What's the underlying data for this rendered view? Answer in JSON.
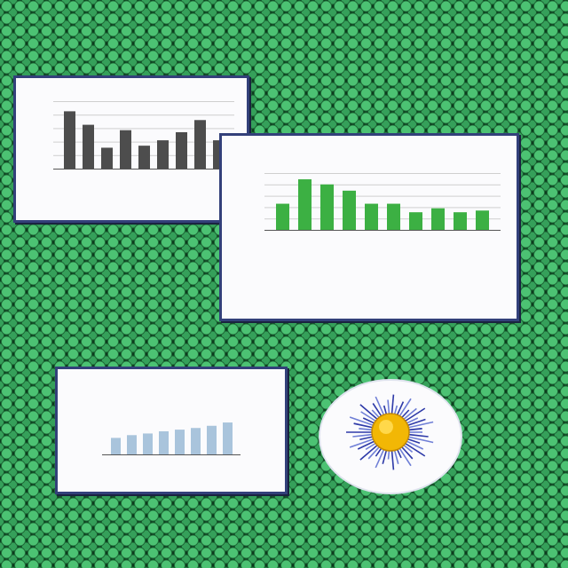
{
  "chart_data": [
    {
      "type": "bar",
      "categories": [
        null,
        null,
        null,
        null,
        null,
        null,
        null,
        null,
        null
      ],
      "values": [
        85,
        65,
        31,
        57,
        34,
        42,
        54,
        72,
        42
      ],
      "color": "#4d4d4d",
      "ylim": [
        0,
        100
      ],
      "yticks": [
        0,
        20,
        40,
        60,
        80,
        100
      ],
      "grid": true,
      "tick_labels": false
    },
    {
      "type": "bar",
      "categories": [
        null,
        null,
        null,
        null,
        null,
        null,
        null,
        null,
        null,
        null
      ],
      "values": [
        46,
        89,
        80,
        69,
        46,
        46,
        31,
        38,
        31,
        34
      ],
      "color": "#3cb043",
      "ylim": [
        0,
        100
      ],
      "yticks": [
        0,
        20,
        40,
        60,
        80,
        100
      ],
      "grid": true,
      "tick_labels": false
    },
    {
      "type": "bar",
      "categories": [
        null,
        null,
        null,
        null,
        null,
        null,
        null,
        null
      ],
      "values": [
        30,
        35,
        38,
        42,
        45,
        48,
        52,
        58
      ],
      "color": "#a9c4dc",
      "ylim": [
        0,
        100
      ],
      "yticks": [
        0,
        20,
        40,
        60,
        80,
        100
      ],
      "grid": false,
      "tick_labels": false
    }
  ]
}
